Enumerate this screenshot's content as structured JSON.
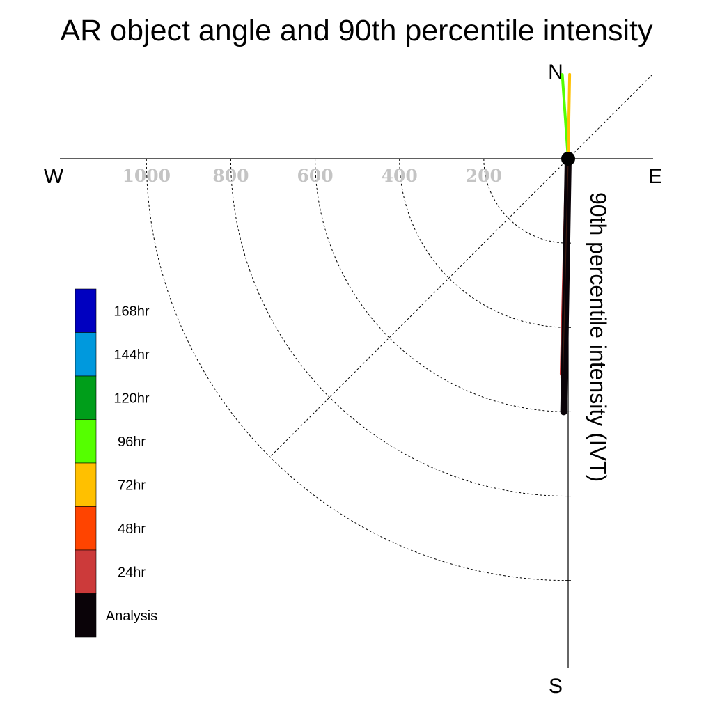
{
  "chart_data": {
    "type": "polar-line",
    "title": "AR object angle and 90th percentile intensity",
    "ylabel": "90th percentile intensity (IVT)",
    "compass": {
      "north": "N",
      "south": "S",
      "east": "E",
      "west": "W"
    },
    "radial_ticks": [
      200,
      400,
      600,
      800,
      1000
    ],
    "radial_tick_labels": [
      "200",
      "400",
      "600",
      "800",
      "1000"
    ],
    "rlim": [
      0,
      1000
    ],
    "series": [
      {
        "name": "Analysis",
        "color": "#0a0308",
        "angle_deg": 181.0,
        "intensity": 600
      },
      {
        "name": "24hr",
        "color": "#cc3a3a",
        "angle_deg": 181.4,
        "intensity": 510
      },
      {
        "name": "48hr",
        "color": "#ff4400",
        "angle_deg": 181.2,
        "intensity": 520
      },
      {
        "name": "72hr",
        "color": "#ffc000",
        "angle_deg": 1.0,
        "intensity": 200
      },
      {
        "name": "96hr",
        "color": "#55ff00",
        "angle_deg": 356.0,
        "intensity": 200
      },
      {
        "name": "120hr",
        "color": "#009e1a",
        "angle_deg": 0,
        "intensity": 0
      },
      {
        "name": "144hr",
        "color": "#0099dd",
        "angle_deg": 0,
        "intensity": 0
      },
      {
        "name": "168hr",
        "color": "#0000c0",
        "angle_deg": 0,
        "intensity": 0
      }
    ],
    "legend": {
      "placement": "lower-left",
      "entries": [
        {
          "label": "168hr",
          "color": "#0000c0"
        },
        {
          "label": "144hr",
          "color": "#0099dd"
        },
        {
          "label": "120hr",
          "color": "#009e1a"
        },
        {
          "label": "96hr",
          "color": "#55ff00"
        },
        {
          "label": "72hr",
          "color": "#ffc000"
        },
        {
          "label": "48hr",
          "color": "#ff4400"
        },
        {
          "label": "24hr",
          "color": "#cc3a3a"
        },
        {
          "label": "Analysis",
          "color": "#0a0308"
        }
      ]
    }
  }
}
